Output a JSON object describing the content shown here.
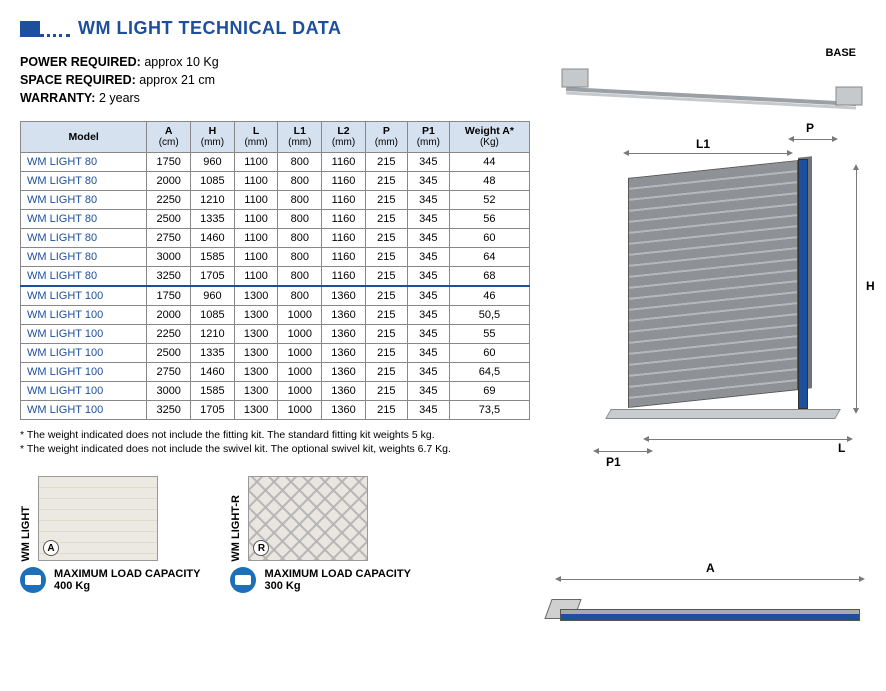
{
  "title": "WM LIGHT TECHNICAL DATA",
  "specs": {
    "power_label": "POWER REQUIRED:",
    "power_value": "approx 10 Kg",
    "space_label": "SPACE REQUIRED:",
    "space_value": "approx 21 cm",
    "warranty_label": "WARRANTY:",
    "warranty_value": "2 years"
  },
  "table": {
    "columns": [
      {
        "h1": "Model",
        "h2": ""
      },
      {
        "h1": "A",
        "h2": "(cm)"
      },
      {
        "h1": "H",
        "h2": "(mm)"
      },
      {
        "h1": "L",
        "h2": "(mm)"
      },
      {
        "h1": "L1",
        "h2": "(mm)"
      },
      {
        "h1": "L2",
        "h2": "(mm)"
      },
      {
        "h1": "P",
        "h2": "(mm)"
      },
      {
        "h1": "P1",
        "h2": "(mm)"
      },
      {
        "h1": "Weight A*",
        "h2": "(Kg)"
      }
    ],
    "rows": [
      [
        "WM LIGHT 80",
        "1750",
        "960",
        "1100",
        "800",
        "1160",
        "215",
        "345",
        "44"
      ],
      [
        "WM LIGHT 80",
        "2000",
        "1085",
        "1100",
        "800",
        "1160",
        "215",
        "345",
        "48"
      ],
      [
        "WM LIGHT 80",
        "2250",
        "1210",
        "1100",
        "800",
        "1160",
        "215",
        "345",
        "52"
      ],
      [
        "WM LIGHT 80",
        "2500",
        "1335",
        "1100",
        "800",
        "1160",
        "215",
        "345",
        "56"
      ],
      [
        "WM LIGHT 80",
        "2750",
        "1460",
        "1100",
        "800",
        "1160",
        "215",
        "345",
        "60"
      ],
      [
        "WM LIGHT 80",
        "3000",
        "1585",
        "1100",
        "800",
        "1160",
        "215",
        "345",
        "64"
      ],
      [
        "WM LIGHT  80",
        "3250",
        "1705",
        "1100",
        "800",
        "1160",
        "215",
        "345",
        "68"
      ],
      [
        "WM LIGHT 100",
        "1750",
        "960",
        "1300",
        "800",
        "1360",
        "215",
        "345",
        "46"
      ],
      [
        "WM LIGHT 100",
        "2000",
        "1085",
        "1300",
        "1000",
        "1360",
        "215",
        "345",
        "50,5"
      ],
      [
        "WM LIGHT 100",
        "2250",
        "1210",
        "1300",
        "1000",
        "1360",
        "215",
        "345",
        "55"
      ],
      [
        "WM LIGHT 100",
        "2500",
        "1335",
        "1300",
        "1000",
        "1360",
        "215",
        "345",
        "60"
      ],
      [
        "WM LIGHT 100",
        "2750",
        "1460",
        "1300",
        "1000",
        "1360",
        "215",
        "345",
        "64,5"
      ],
      [
        "WM LIGHT 100",
        "3000",
        "1585",
        "1300",
        "1000",
        "1360",
        "215",
        "345",
        "69"
      ],
      [
        "WM LIGHT 100",
        "3250",
        "1705",
        "1300",
        "1000",
        "1360",
        "215",
        "345",
        "73,5"
      ]
    ],
    "separator_after_row": 6,
    "header_bg": "#d6e1f0",
    "model_color": "#1d4f9c",
    "border_color": "#888888"
  },
  "footnotes": [
    "* The weight indicated does not include the fitting kit. The standard fitting kit weights 5 kg.",
    "* The weight indicated does not include the swivel kit.  The optional swivel kit, weights 6.7 Kg."
  ],
  "thumbs": {
    "a": {
      "side_label": "WM LIGHT",
      "tag": "A",
      "cap_label": "MAXIMUM LOAD CAPACITY",
      "cap_value": "400 Kg"
    },
    "b": {
      "side_label": "WM LIGHT-R",
      "tag": "R",
      "cap_label": "MAXIMUM LOAD CAPACITY",
      "cap_value": "300 Kg"
    }
  },
  "diagrams": {
    "base_label": "BASE",
    "dim_P": "P",
    "dim_L1": "L1",
    "dim_H": "H",
    "dim_L": "L",
    "dim_P1": "P1",
    "dim_A": "A"
  },
  "colors": {
    "brand": "#1d4f9c",
    "accent": "#1d6fb8",
    "text": "#000000",
    "bg": "#ffffff"
  }
}
